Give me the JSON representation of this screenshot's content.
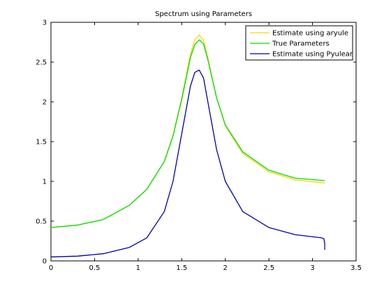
{
  "chart_data": {
    "type": "line",
    "title": "Spectrum using Parameters",
    "xlabel": "",
    "ylabel": "",
    "xlim": [
      0,
      3.5
    ],
    "ylim": [
      0,
      3
    ],
    "xticks": [
      "0",
      "0.5",
      "1",
      "1.5",
      "2",
      "2.5",
      "3",
      "3.5"
    ],
    "yticks": [
      "0",
      "0.5",
      "1",
      "1.5",
      "2",
      "2.5",
      "3"
    ],
    "grid": false,
    "legend_position": "top-right",
    "series": [
      {
        "name": "Estimate using aryule",
        "color": "#ffd700",
        "x": [
          0,
          0.3,
          0.6,
          0.9,
          1.1,
          1.3,
          1.4,
          1.5,
          1.6,
          1.65,
          1.7,
          1.75,
          1.8,
          1.9,
          2.0,
          2.2,
          2.5,
          2.8,
          3.14
        ],
        "y": [
          0.42,
          0.45,
          0.52,
          0.7,
          0.9,
          1.25,
          1.58,
          2.05,
          2.6,
          2.78,
          2.84,
          2.78,
          2.55,
          2.05,
          1.7,
          1.35,
          1.12,
          1.02,
          0.98
        ]
      },
      {
        "name": "True Parameters",
        "color": "#00dd00",
        "x": [
          0,
          0.3,
          0.6,
          0.9,
          1.1,
          1.3,
          1.4,
          1.5,
          1.6,
          1.65,
          1.7,
          1.75,
          1.8,
          1.9,
          2.0,
          2.2,
          2.5,
          2.8,
          3.14
        ],
        "y": [
          0.42,
          0.45,
          0.52,
          0.7,
          0.9,
          1.25,
          1.57,
          2.03,
          2.56,
          2.72,
          2.78,
          2.73,
          2.53,
          2.05,
          1.71,
          1.37,
          1.14,
          1.04,
          1.01
        ]
      },
      {
        "name": "Estimate using Pyulear",
        "color": "#0000aa",
        "x": [
          0,
          0.3,
          0.6,
          0.9,
          1.1,
          1.3,
          1.4,
          1.5,
          1.6,
          1.65,
          1.7,
          1.75,
          1.8,
          1.9,
          2.0,
          2.2,
          2.5,
          2.8,
          3.1,
          3.13,
          3.14,
          3.14
        ],
        "y": [
          0.05,
          0.06,
          0.09,
          0.17,
          0.29,
          0.62,
          1.0,
          1.6,
          2.2,
          2.37,
          2.4,
          2.3,
          2.0,
          1.4,
          1.0,
          0.62,
          0.42,
          0.33,
          0.29,
          0.28,
          0.22,
          0.14
        ]
      }
    ]
  }
}
